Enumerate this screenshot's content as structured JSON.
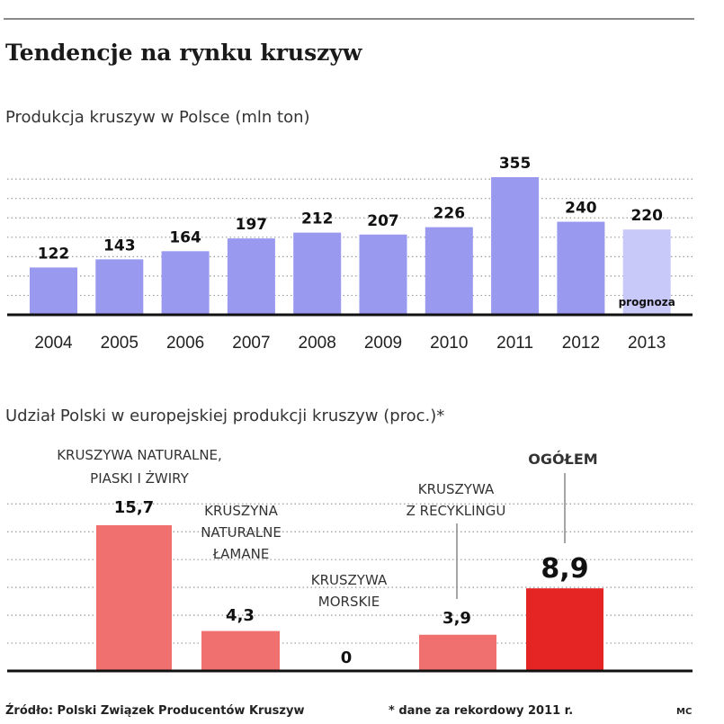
{
  "header": {
    "title": "Tendencje na rynku kruszyw"
  },
  "footer": {
    "source": "Źródło: Polski Związek Producentów Kruszyw",
    "note": "* dane za rekordowy 2011 r.",
    "signature": "MC"
  },
  "colors": {
    "bar1": "#9999f0",
    "bar1_forecast": "#c9c9f9",
    "bar2": "#f07070",
    "bar2_total": "#e52424"
  },
  "chart_data": [
    {
      "type": "bar",
      "title": "Produkcja kruszyw w Polsce (mln ton)",
      "categories": [
        "2004",
        "2005",
        "2006",
        "2007",
        "2008",
        "2009",
        "2010",
        "2011",
        "2012",
        "2013"
      ],
      "values": [
        122,
        143,
        164,
        197,
        212,
        207,
        226,
        355,
        240,
        220
      ],
      "value_labels": [
        "122",
        "143",
        "164",
        "197",
        "212",
        "207",
        "226",
        "355",
        "240",
        "220"
      ],
      "annotation": "prognoza",
      "forecast_category": "2013",
      "ylim": [
        0,
        400
      ],
      "gridlines": [
        50,
        100,
        150,
        200,
        250,
        300,
        350
      ],
      "grid": true
    },
    {
      "type": "bar",
      "title": "Udział Polski w europejskiej produkcji kruszyw (proc.)*",
      "categories": [
        [
          "KRUSZYWA NATURALNE,",
          "PIASKI I ŻWIRY"
        ],
        [
          "KRUSZYNA",
          "NATURALNE",
          "ŁAMANE"
        ],
        [
          "KRUSZYWA",
          "MORSKIE"
        ],
        [
          "KRUSZYWA",
          "Z RECYKLINGU"
        ],
        [
          "OGÓŁEM"
        ]
      ],
      "values": [
        15.7,
        4.3,
        0,
        3.9,
        8.9
      ],
      "value_labels": [
        "15,7",
        "4,3",
        "0",
        "3,9",
        "8,9"
      ],
      "ylim": [
        0,
        20
      ],
      "gridlines": [
        3,
        6,
        9,
        12,
        15,
        18
      ],
      "grid": true
    }
  ]
}
